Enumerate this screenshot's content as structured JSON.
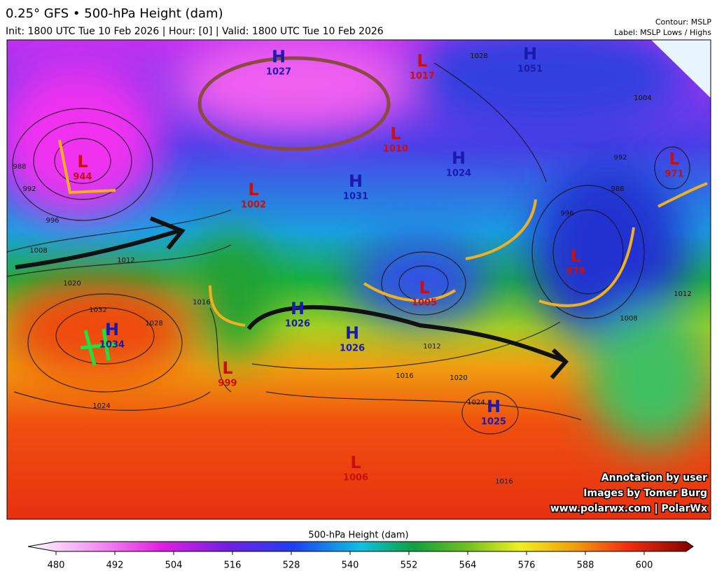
{
  "header": {
    "title": "0.25° GFS • 500-hPa Height (dam)",
    "subtitle": "Init: 1800 UTC Tue 10 Feb 2026 | Hour: [0] | Valid: 1800 UTC Tue 10 Feb 2026",
    "contour": "Contour: MSLP",
    "label": "Label: MSLP Lows / Highs"
  },
  "centers": [
    {
      "type": "H",
      "value": 1027
    },
    {
      "type": "L",
      "value": 1017
    },
    {
      "type": "H",
      "value": 1051
    },
    {
      "type": "L",
      "value": 944
    },
    {
      "type": "L",
      "value": 1010
    },
    {
      "type": "H",
      "value": 1024
    },
    {
      "type": "H",
      "value": 1031
    },
    {
      "type": "L",
      "value": 1002
    },
    {
      "type": "L",
      "value": 971
    },
    {
      "type": "L",
      "value": 979
    },
    {
      "type": "L",
      "value": 1005
    },
    {
      "type": "H",
      "value": 1026
    },
    {
      "type": "H",
      "value": 1034
    },
    {
      "type": "H",
      "value": 1026
    },
    {
      "type": "L",
      "value": 999
    },
    {
      "type": "H",
      "value": 1025
    },
    {
      "type": "L",
      "value": 1006
    }
  ],
  "isobar_labels": [
    1008,
    1012,
    1020,
    1032,
    1028,
    1024,
    996,
    992,
    988,
    1016,
    1016,
    1012,
    1016,
    1020,
    1024,
    992,
    988,
    996,
    1004,
    1012,
    1008,
    1028
  ],
  "colorbar": {
    "title": "500-hPa Height (dam)",
    "ticks": [
      480,
      492,
      504,
      516,
      528,
      540,
      552,
      564,
      576,
      588,
      600
    ]
  },
  "credits": [
    "Annotation by user",
    "Images by Tomer Burg",
    "www.polarwx.com | PolarWx"
  ]
}
